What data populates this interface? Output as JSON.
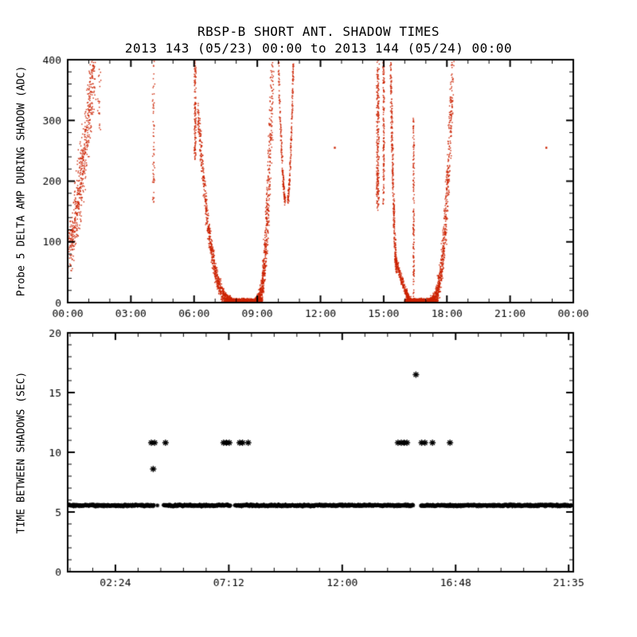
{
  "chart_data": [
    {
      "id": "shadow_adc",
      "type": "scatter",
      "title": "RBSP-B SHORT ANT. SHADOW TIMES",
      "subtitle": "2013 143 (05/23) 00:00 to 2013 144 (05/24) 00:00",
      "xlabel": "",
      "ylabel": "Probe 5 DELTA AMP DURING SHADOW (ADC)",
      "xlim": [
        0,
        24
      ],
      "ylim": [
        0,
        400
      ],
      "xticks": [
        {
          "v": 0,
          "label": "00:00"
        },
        {
          "v": 3,
          "label": "03:00"
        },
        {
          "v": 6,
          "label": "06:00"
        },
        {
          "v": 9,
          "label": "09:00"
        },
        {
          "v": 12,
          "label": "12:00"
        },
        {
          "v": 15,
          "label": "15:00"
        },
        {
          "v": 18,
          "label": "18:00"
        },
        {
          "v": 21,
          "label": "21:00"
        },
        {
          "v": 24,
          "label": "00:00"
        }
      ],
      "yticks": [
        0,
        100,
        200,
        300,
        400
      ],
      "x_minor_step": 1,
      "y_minor_step": 20,
      "grid": false,
      "legend": false,
      "marker": "dot",
      "color": "#cc2200",
      "segments": [
        {
          "kind": "branch",
          "x0": 0.08,
          "x1": 1.25,
          "y0": 90,
          "y1": 400,
          "p": 1.4,
          "n": 560,
          "jx": 0.2,
          "jy": 55
        },
        {
          "kind": "vband",
          "x": 1.5,
          "w": 0.09,
          "y0": 260,
          "y1": 400,
          "n": 22
        },
        {
          "kind": "vband",
          "x": 4.08,
          "w": 0.06,
          "y0": 165,
          "y1": 400,
          "n": 60
        },
        {
          "kind": "vband",
          "x": 6.05,
          "w": 0.06,
          "y0": 235,
          "y1": 400,
          "n": 130
        },
        {
          "kind": "branch",
          "x0": 7.78,
          "x1": 6.18,
          "y0": 2,
          "y1": 315,
          "p": 2.5,
          "n": 760,
          "jx": 0.05,
          "jy": 9,
          "fan": 26
        },
        {
          "kind": "hband",
          "x0": 7.55,
          "x1": 9.25,
          "y": 3,
          "jy": 4.5,
          "n": 520
        },
        {
          "kind": "branch",
          "x0": 8.95,
          "x1": 9.72,
          "y0": 2,
          "y1": 400,
          "p": 2.8,
          "n": 660,
          "jx": 0.12,
          "jy": 9,
          "fan": 22
        },
        {
          "kind": "branch",
          "x0": 10.32,
          "x1": 10.0,
          "y0": 168,
          "y1": 400,
          "p": 1.5,
          "n": 170,
          "jx": 0.04,
          "jy": 9
        },
        {
          "kind": "branch",
          "x0": 10.45,
          "x1": 10.72,
          "y0": 168,
          "y1": 400,
          "p": 1.5,
          "n": 170,
          "jx": 0.04,
          "jy": 9
        },
        {
          "kind": "points",
          "pts": [
            [
              12.68,
              255
            ]
          ]
        },
        {
          "kind": "vband",
          "x": 14.72,
          "w": 0.08,
          "y0": 150,
          "y1": 400,
          "n": 240
        },
        {
          "kind": "vband",
          "x": 15.0,
          "w": 0.05,
          "y0": 160,
          "y1": 400,
          "n": 150
        },
        {
          "kind": "branch",
          "x0": 15.62,
          "x1": 15.33,
          "y0": 55,
          "y1": 400,
          "p": 1.7,
          "n": 330,
          "jx": 0.05,
          "jy": 12
        },
        {
          "kind": "branch",
          "x0": 16.3,
          "x1": 15.6,
          "y0": 3,
          "y1": 70,
          "p": 1.5,
          "n": 260,
          "jx": 0.07,
          "jy": 7
        },
        {
          "kind": "vband",
          "x": 16.42,
          "w": 0.04,
          "y0": 5,
          "y1": 305,
          "n": 150
        },
        {
          "kind": "hband",
          "x0": 16.0,
          "x1": 17.35,
          "y": 3,
          "jy": 4.5,
          "n": 480
        },
        {
          "kind": "branch",
          "x0": 17.25,
          "x1": 18.28,
          "y0": 2,
          "y1": 400,
          "p": 2.7,
          "n": 730,
          "jx": 0.11,
          "jy": 9,
          "fan": 24
        },
        {
          "kind": "points",
          "pts": [
            [
              22.72,
              255
            ]
          ]
        }
      ]
    },
    {
      "id": "time_between_shadows",
      "type": "scatter",
      "title": "",
      "xlabel": "",
      "ylabel": "TIME BETWEEN SHADOWS (SEC)",
      "xlim": [
        0.38,
        21.78
      ],
      "ylim": [
        0,
        20
      ],
      "xticks": [
        {
          "v": 2.4,
          "label": "02:24"
        },
        {
          "v": 7.2,
          "label": "07:12"
        },
        {
          "v": 12.0,
          "label": "12:00"
        },
        {
          "v": 16.8,
          "label": "16:48"
        },
        {
          "v": 21.583,
          "label": "21:35"
        }
      ],
      "yticks": [
        0,
        5,
        10,
        15,
        20
      ],
      "x_minor_step": 0.96,
      "y_minor_step": 1,
      "grid": false,
      "legend": false,
      "marker": "asterisk",
      "color": "#000000",
      "band": {
        "y": 5.55,
        "jitter": 0.09,
        "step": 0.022,
        "segments": [
          [
            0.42,
            4.03
          ],
          [
            4.44,
            7.26
          ],
          [
            7.46,
            15.02
          ],
          [
            15.33,
            21.72
          ]
        ],
        "lone_points": [
          [
            4.18,
            5.55
          ]
        ]
      },
      "outliers": [
        [
          3.92,
          10.8
        ],
        [
          4.06,
          10.8
        ],
        [
          4.52,
          10.8
        ],
        [
          6.98,
          10.8
        ],
        [
          7.1,
          10.8
        ],
        [
          7.22,
          10.8
        ],
        [
          7.66,
          10.8
        ],
        [
          7.78,
          10.8
        ],
        [
          8.02,
          10.8
        ],
        [
          14.36,
          10.8
        ],
        [
          14.5,
          10.8
        ],
        [
          14.62,
          10.8
        ],
        [
          14.74,
          10.8
        ],
        [
          15.36,
          10.8
        ],
        [
          15.5,
          10.8
        ],
        [
          15.82,
          10.8
        ],
        [
          16.56,
          10.8
        ],
        [
          4.0,
          8.6
        ],
        [
          15.12,
          16.5
        ]
      ]
    }
  ]
}
